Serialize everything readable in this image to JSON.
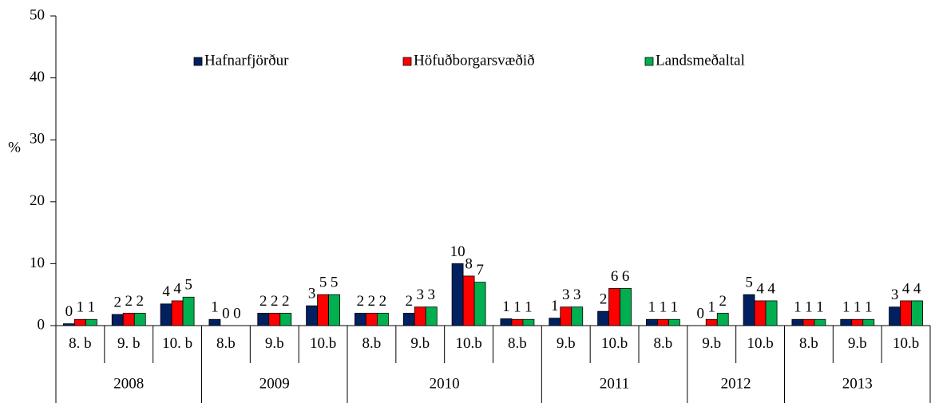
{
  "chart_data": {
    "type": "bar",
    "y_label": "%",
    "ylim": [
      0,
      50
    ],
    "yticks": [
      0,
      10,
      20,
      30,
      40,
      50
    ],
    "grid": false,
    "legend": "top",
    "categories": [
      "8. b",
      "9. b",
      "10. b",
      "8.b",
      "9.b",
      "10.b",
      "8.b",
      "9.b",
      "10.b",
      "8.b",
      "9.b",
      "10.b",
      "8.b",
      "9.b",
      "10.b",
      "8.b",
      "9.b",
      "10.b"
    ],
    "groups": [
      {
        "label": "2008",
        "size": 3
      },
      {
        "label": "2009",
        "size": 3
      },
      {
        "label": "2010",
        "size": 4
      },
      {
        "label": "2011",
        "size": 3
      },
      {
        "label": "2012",
        "size": 2
      },
      {
        "label": "2013",
        "size": 3
      }
    ],
    "series": [
      {
        "name": "Hafnarfjörður",
        "color": "#002060",
        "values": [
          0.3,
          1.8,
          3.5,
          1,
          2,
          3.2,
          2,
          2,
          10,
          1.1,
          1.2,
          2.3,
          1,
          0,
          5,
          1,
          1,
          3
        ],
        "value_labels": [
          "0",
          "2",
          "4",
          "1",
          "2",
          "3",
          "2",
          "2",
          "10",
          "1",
          "1",
          "2",
          "1",
          "0",
          "5",
          "1",
          "1",
          "3"
        ]
      },
      {
        "name": "Höfuðborgarsvæðið",
        "color": "#ff0000",
        "values": [
          1,
          2,
          4,
          0,
          2,
          5,
          2,
          3,
          8,
          1,
          3,
          6,
          1,
          1,
          4,
          1,
          1,
          4
        ],
        "value_labels": [
          "1",
          "2",
          "4",
          "0",
          "2",
          "5",
          "2",
          "3",
          "8",
          "1",
          "3",
          "6",
          "1",
          "1",
          "4",
          "1",
          "1",
          "4"
        ]
      },
      {
        "name": "Landsmeðaltal",
        "color": "#00b050",
        "values": [
          1,
          2,
          4.6,
          0,
          2,
          5,
          2,
          3,
          7,
          1,
          3,
          6,
          1,
          2,
          4,
          1,
          1,
          4
        ],
        "value_labels": [
          "1",
          "2",
          "5",
          "0",
          "2",
          "5",
          "2",
          "3",
          "7",
          "1",
          "3",
          "6",
          "1",
          "2",
          "4",
          "1",
          "1",
          "4"
        ]
      }
    ]
  }
}
